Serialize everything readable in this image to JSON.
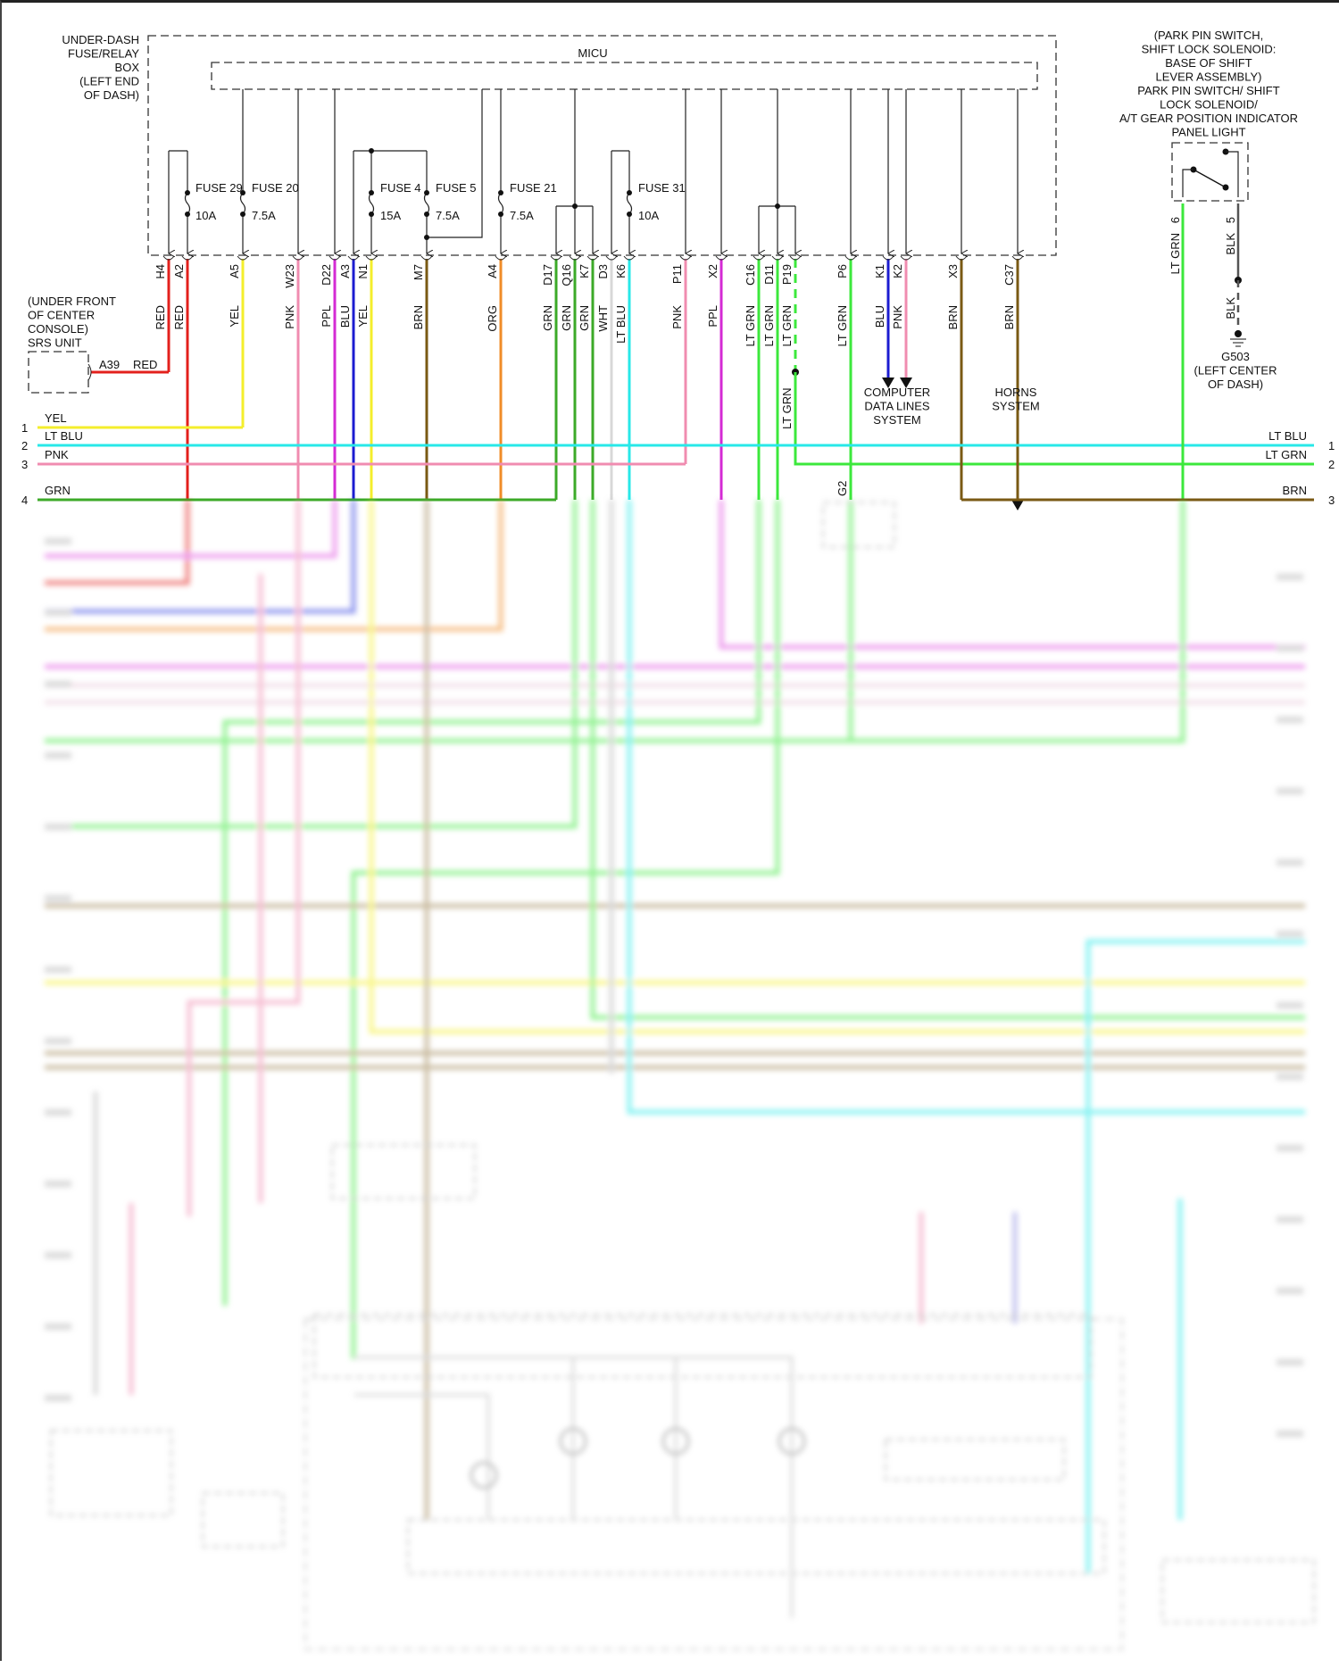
{
  "fuse_box": {
    "label_lines": [
      "UNDER-DASH",
      "FUSE/RELAY",
      "BOX",
      "(LEFT END",
      "OF DASH)"
    ],
    "micu_label": "MICU",
    "fuses": [
      {
        "name": "FUSE 29",
        "rating": "10A"
      },
      {
        "name": "FUSE 20",
        "rating": "7.5A"
      },
      {
        "name": "FUSE 4",
        "rating": "15A"
      },
      {
        "name": "FUSE 5",
        "rating": "7.5A"
      },
      {
        "name": "FUSE 21",
        "rating": "7.5A"
      },
      {
        "name": "FUSE 31",
        "rating": "10A"
      }
    ]
  },
  "pins": [
    {
      "pin": "H4",
      "wire": "RED",
      "color": "#e3201c"
    },
    {
      "pin": "A2",
      "wire": "RED",
      "color": "#e3201c"
    },
    {
      "pin": "A5",
      "wire": "YEL",
      "color": "#f4ee2c"
    },
    {
      "pin": "W23",
      "wire": "PNK",
      "color": "#f08cb0"
    },
    {
      "pin": "D22",
      "wire": "PPL",
      "color": "#d42ad4"
    },
    {
      "pin": "A3",
      "wire": "BLU",
      "color": "#1c1cd0"
    },
    {
      "pin": "N1",
      "wire": "YEL",
      "color": "#f4ee2c"
    },
    {
      "pin": "M7",
      "wire": "BRN",
      "color": "#7a5a14"
    },
    {
      "pin": "A4",
      "wire": "ORG",
      "color": "#f08c28"
    },
    {
      "pin": "D17",
      "wire": "GRN",
      "color": "#3caa28"
    },
    {
      "pin": "Q16",
      "wire": "GRN",
      "color": "#3caa28"
    },
    {
      "pin": "K7",
      "wire": "GRN",
      "color": "#3caa28"
    },
    {
      "pin": "D3",
      "wire": "WHT",
      "color": "#d8d8d8"
    },
    {
      "pin": "K6",
      "wire": "LT BLU",
      "color": "#28e8e8"
    },
    {
      "pin": "P11",
      "wire": "PNK",
      "color": "#f08cb0"
    },
    {
      "pin": "X2",
      "wire": "PPL",
      "color": "#d42ad4"
    },
    {
      "pin": "C16",
      "wire": "LT GRN",
      "color": "#3ce83c"
    },
    {
      "pin": "D11",
      "wire": "LT GRN",
      "color": "#3ce83c"
    },
    {
      "pin": "P19",
      "wire": "LT GRN",
      "color": "#3ce83c"
    },
    {
      "pin": "P6",
      "wire": "LT GRN",
      "color": "#3ce83c"
    },
    {
      "pin": "K1",
      "wire": "BLU",
      "color": "#1c1cd0"
    },
    {
      "pin": "K2",
      "wire": "PNK",
      "color": "#f08cb0"
    },
    {
      "pin": "X3",
      "wire": "BRN",
      "color": "#7a5a14"
    },
    {
      "pin": "C37",
      "wire": "BRN",
      "color": "#7a5a14"
    }
  ],
  "p19_lower_wire": "LT GRN",
  "p6_lower_pin": "G2",
  "srs_unit": {
    "label_lines": [
      "(UNDER FRONT",
      "OF CENTER",
      "CONSOLE)",
      "SRS UNIT"
    ],
    "pin": "A39",
    "wire": "RED"
  },
  "bus_left": [
    {
      "num": "1",
      "label": "YEL",
      "color": "#f4ee2c"
    },
    {
      "num": "2",
      "label": "LT BLU",
      "color": "#28e8e8"
    },
    {
      "num": "3",
      "label": "PNK",
      "color": "#f08cb0"
    },
    {
      "num": "4",
      "label": "GRN",
      "color": "#3caa28"
    }
  ],
  "bus_right": [
    {
      "num": "1",
      "label": "LT BLU",
      "color": "#28e8e8"
    },
    {
      "num": "2",
      "label": "LT GRN",
      "color": "#3ce83c"
    },
    {
      "num": "3",
      "label": "BRN",
      "color": "#7a5a14"
    }
  ],
  "computer_data_lines": [
    "COMPUTER",
    "DATA LINES",
    "SYSTEM"
  ],
  "horns": [
    "HORNS",
    "SYSTEM"
  ],
  "park_switch": {
    "label_lines": [
      "(PARK PIN SWITCH,",
      "SHIFT LOCK SOLENOID:",
      "BASE OF SHIFT",
      "LEVER ASSEMBLY)",
      "PARK PIN SWITCH/ SHIFT",
      "LOCK SOLENOID/",
      "A/T GEAR POSITION INDICATOR",
      "PANEL LIGHT"
    ],
    "pin6": "6",
    "pin6_wire": "LT GRN",
    "pin6_color": "#3ce83c",
    "pin5": "5",
    "pin5_wire": "BLK",
    "ground_wire": "BLK"
  },
  "ground": {
    "label_lines": [
      "G503",
      "(LEFT CENTER",
      "OF DASH)"
    ]
  }
}
